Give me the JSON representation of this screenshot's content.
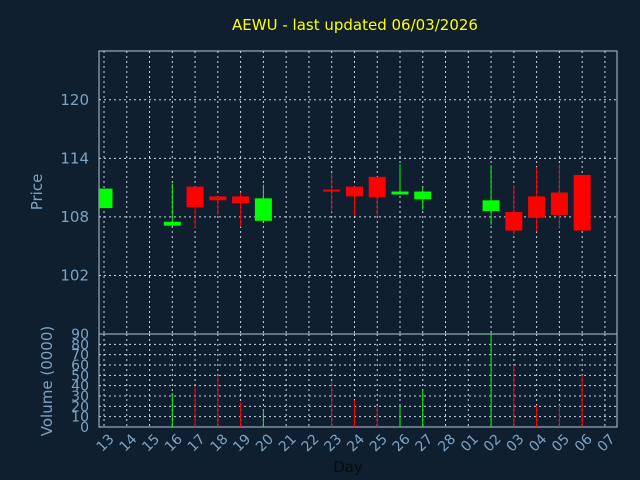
{
  "chart_data": {
    "type": "candlestick",
    "title": "AEWU - last updated 06/03/2026",
    "ylabel": "Price",
    "volume_label": "Volume (0000)",
    "xlabel": "Day",
    "ylim": [
      96,
      125
    ],
    "yticks": [
      102,
      108,
      114,
      120
    ],
    "volume_ylim": [
      0,
      90
    ],
    "volume_ticks": [
      0,
      10,
      20,
      30,
      40,
      50,
      60,
      70,
      80,
      90
    ],
    "grid": true,
    "colors": {
      "up": "#00ff00",
      "down": "#ff0000",
      "background": "#0f1f30",
      "title": "#ffff00",
      "axis_text": "#7fa3c4"
    },
    "x_labels": [
      "13",
      "14",
      "15",
      "16",
      "17",
      "18",
      "19",
      "20",
      "21",
      "22",
      "23",
      "24",
      "25",
      "26",
      "27",
      "28",
      "01",
      "02",
      "03",
      "04",
      "05",
      "06",
      "07"
    ],
    "candles": [
      {
        "x": 0,
        "open": 108.9,
        "close": 110.9,
        "high": 110.9,
        "low": 108.9,
        "volume": 0
      },
      {
        "x": 3,
        "open": 107.1,
        "close": 107.5,
        "high": 111.4,
        "low": 107.1,
        "volume": 33
      },
      {
        "x": 4,
        "open": 111.1,
        "close": 109.0,
        "high": 111.1,
        "low": 106.8,
        "volume": 40
      },
      {
        "x": 5,
        "open": 110.1,
        "close": 109.7,
        "high": 110.1,
        "low": 108.2,
        "volume": 49
      },
      {
        "x": 6,
        "open": 110.1,
        "close": 109.4,
        "high": 110.5,
        "low": 107.0,
        "volume": 24
      },
      {
        "x": 7,
        "open": 107.6,
        "close": 109.9,
        "high": 111.3,
        "low": 107.6,
        "volume": 17
      },
      {
        "x": 10,
        "open": 110.8,
        "close": 110.6,
        "high": 112.5,
        "low": 108.5,
        "volume": 44
      },
      {
        "x": 11,
        "open": 111.1,
        "close": 110.1,
        "high": 111.1,
        "low": 108.1,
        "volume": 26
      },
      {
        "x": 12,
        "open": 112.1,
        "close": 110.0,
        "high": 112.1,
        "low": 108.1,
        "volume": 20
      },
      {
        "x": 13,
        "open": 110.3,
        "close": 110.6,
        "high": 113.4,
        "low": 110.3,
        "volume": 21
      },
      {
        "x": 14,
        "open": 109.8,
        "close": 110.6,
        "high": 111.0,
        "low": 108.7,
        "volume": 36
      },
      {
        "x": 17,
        "open": 108.6,
        "close": 109.7,
        "high": 113.3,
        "low": 107.2,
        "volume": 90
      },
      {
        "x": 18,
        "open": 108.5,
        "close": 106.6,
        "high": 111.2,
        "low": 106.2,
        "volume": 60
      },
      {
        "x": 19,
        "open": 110.1,
        "close": 107.9,
        "high": 113.1,
        "low": 106.5,
        "volume": 21
      },
      {
        "x": 20,
        "open": 110.5,
        "close": 108.2,
        "high": 113.4,
        "low": 106.8,
        "volume": 21
      },
      {
        "x": 21,
        "open": 112.3,
        "close": 106.6,
        "high": 112.3,
        "low": 106.6,
        "volume": 50
      }
    ]
  }
}
